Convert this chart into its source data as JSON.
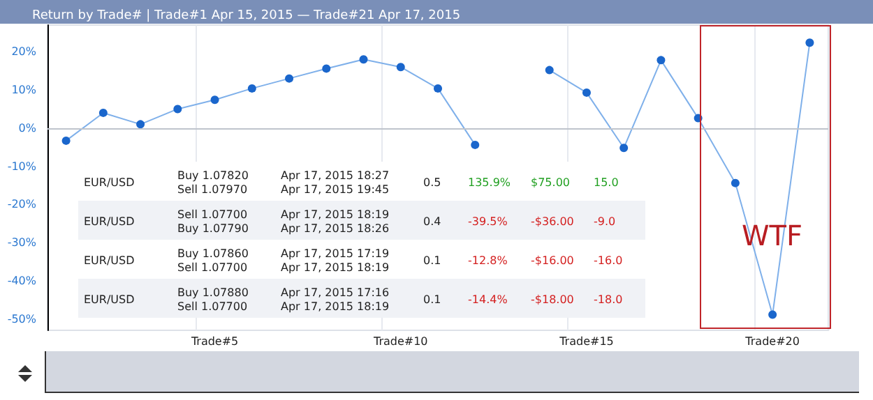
{
  "chart_data": {
    "type": "line",
    "title": "Return by Trade# | Trade#1 Apr 15, 2015 — Trade#21 Apr 17, 2015",
    "categories": [
      null,
      null,
      null,
      null,
      "Trade#5",
      null,
      null,
      null,
      null,
      "Trade#10",
      null,
      null,
      null,
      null,
      "Trade#15",
      null,
      null,
      null,
      null,
      "Trade#20",
      null
    ],
    "series": [
      {
        "color": "#1a66cc",
        "values": [
          -3.3,
          4,
          1,
          5,
          7.4,
          10.4,
          13,
          15.6,
          18,
          16,
          10.4,
          -4.4,
          null,
          15.2,
          9.3,
          -5.2,
          17.8,
          2.6,
          -14.4,
          -48.9,
          22.4
        ]
      }
    ],
    "ylim": [
      -53,
      27
    ],
    "yticks": [
      {
        "value": -50,
        "label": "-50%"
      },
      {
        "value": -40,
        "label": "-40%"
      },
      {
        "value": -30,
        "label": "-30%"
      },
      {
        "value": -20,
        "label": "-20%"
      },
      {
        "value": -10,
        "label": "-10%"
      },
      {
        "value": 0,
        "label": "0%"
      },
      {
        "value": 10,
        "label": "10%"
      },
      {
        "value": 20,
        "label": "20%"
      }
    ],
    "ref_lines": [
      {
        "axis": "y",
        "value": 0,
        "color": "#bfc4cc"
      }
    ],
    "grid": "x",
    "marker": "circle",
    "line_style": "solid",
    "annotations": [
      "WTF",
      "EUR/USD",
      "Buy 1.07820\nSell 1.07970",
      "Apr 17, 2015 18:27\nApr 17, 2015 19:45",
      "0.5",
      "135.9%",
      "$75.00",
      "15.0",
      "EUR/USD",
      "Sell 1.07700\nBuy 1.07790",
      "Apr 17, 2015 18:19\nApr 17, 2015 18:26",
      "0.4",
      "-39.5%",
      "-$36.00",
      "-9.0",
      "EUR/USD",
      "Buy 1.07860\nSell 1.07700",
      "Apr 17, 2015 17:19\nApr 17, 2015 18:19",
      "0.1",
      "-12.8%",
      "-$16.00",
      "-16.0",
      "EUR/USD",
      "Buy 1.07880\nSell 1.07700",
      "Apr 17, 2015 17:16\nApr 17, 2015 18:19",
      "0.1",
      "-14.4%",
      "-$18.00",
      "-18.0"
    ]
  }
}
